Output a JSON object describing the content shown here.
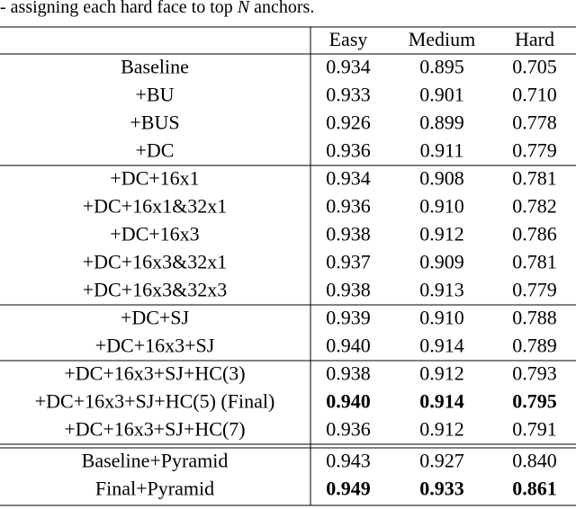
{
  "caption": {
    "before": "- assigning each hard face to top ",
    "variable": "N",
    "after": " anchors."
  },
  "table": {
    "header": [
      "Easy",
      "Medium",
      "Hard"
    ],
    "groups": [
      {
        "rule_above": "single",
        "rows": [
          {
            "label": "Baseline",
            "values": [
              "0.934",
              "0.895",
              "0.705"
            ],
            "bold": false
          },
          {
            "label": "+BU",
            "values": [
              "0.933",
              "0.901",
              "0.710"
            ],
            "bold": false
          },
          {
            "label": "+BUS",
            "values": [
              "0.926",
              "0.899",
              "0.778"
            ],
            "bold": false
          },
          {
            "label": "+DC",
            "values": [
              "0.936",
              "0.911",
              "0.779"
            ],
            "bold": false
          }
        ]
      },
      {
        "rule_above": "single",
        "rows": [
          {
            "label": "+DC+16x1",
            "values": [
              "0.934",
              "0.908",
              "0.781"
            ],
            "bold": false
          },
          {
            "label": "+DC+16x1&32x1",
            "values": [
              "0.936",
              "0.910",
              "0.782"
            ],
            "bold": false
          },
          {
            "label": "+DC+16x3",
            "values": [
              "0.938",
              "0.912",
              "0.786"
            ],
            "bold": false
          },
          {
            "label": "+DC+16x3&32x1",
            "values": [
              "0.937",
              "0.909",
              "0.781"
            ],
            "bold": false
          },
          {
            "label": "+DC+16x3&32x3",
            "values": [
              "0.938",
              "0.913",
              "0.779"
            ],
            "bold": false
          }
        ]
      },
      {
        "rule_above": "single",
        "rows": [
          {
            "label": "+DC+SJ",
            "values": [
              "0.939",
              "0.910",
              "0.788"
            ],
            "bold": false
          },
          {
            "label": "+DC+16x3+SJ",
            "values": [
              "0.940",
              "0.914",
              "0.789"
            ],
            "bold": false
          }
        ]
      },
      {
        "rule_above": "single",
        "rows": [
          {
            "label": "+DC+16x3+SJ+HC(3)",
            "values": [
              "0.938",
              "0.912",
              "0.793"
            ],
            "bold": false
          },
          {
            "label": "+DC+16x3+SJ+HC(5) (Final)",
            "values": [
              "0.940",
              "0.914",
              "0.795"
            ],
            "bold": true
          },
          {
            "label": "+DC+16x3+SJ+HC(7)",
            "values": [
              "0.936",
              "0.912",
              "0.791"
            ],
            "bold": false
          }
        ]
      },
      {
        "rule_above": "double",
        "rows": [
          {
            "label": "Baseline+Pyramid",
            "values": [
              "0.943",
              "0.927",
              "0.840"
            ],
            "bold": false
          },
          {
            "label": "Final+Pyramid",
            "values": [
              "0.949",
              "0.933",
              "0.861"
            ],
            "bold": true
          }
        ]
      }
    ]
  }
}
